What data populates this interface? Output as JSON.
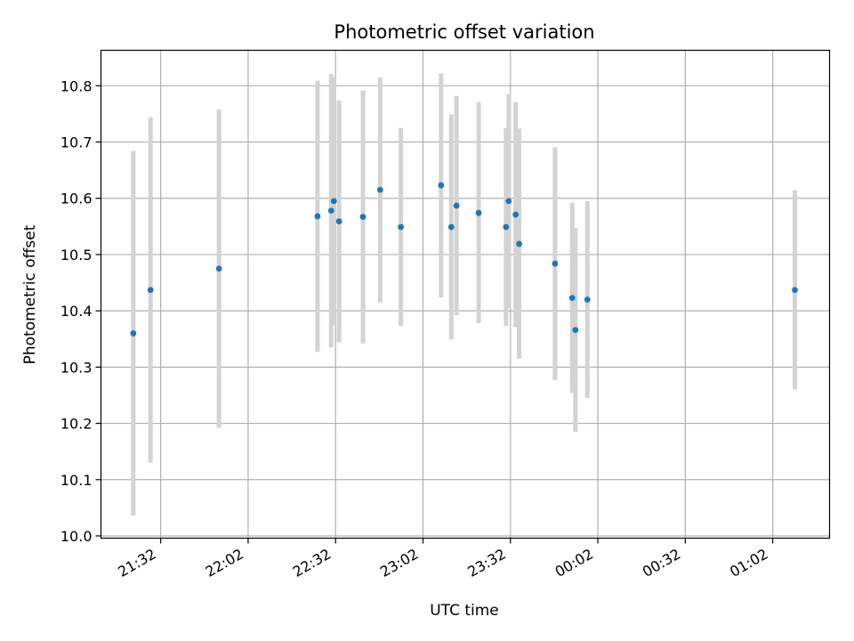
{
  "chart_data": {
    "type": "scatter",
    "title": "Photometric offset variation",
    "xlabel": "UTC time",
    "ylabel": "Photometric offset",
    "x_tick_labels": [
      "21:32",
      "22:02",
      "22:32",
      "23:02",
      "23:32",
      "00:02",
      "00:32",
      "01:02"
    ],
    "x_ticks_minutes": [
      0,
      30,
      60,
      90,
      120,
      150,
      180,
      210
    ],
    "y_ticks": [
      10.0,
      10.1,
      10.2,
      10.3,
      10.4,
      10.5,
      10.6,
      10.7,
      10.8
    ],
    "y_tick_labels": [
      "10.0",
      "10.1",
      "10.2",
      "10.3",
      "10.4",
      "10.5",
      "10.6",
      "10.7",
      "10.8"
    ],
    "xlim_minutes": [
      -20.5,
      229.5
    ],
    "ylim": [
      9.996,
      10.863
    ],
    "grid": true,
    "point_color": "#1f77b4",
    "errorbar_color": "#d3d3d3",
    "note_x": "x values given as minutes after 21:32 UTC",
    "points": [
      {
        "t": -9.4,
        "y": 10.36,
        "lo": 10.036,
        "hi": 10.684
      },
      {
        "t": -3.5,
        "y": 10.437,
        "lo": 10.13,
        "hi": 10.744
      },
      {
        "t": 20.0,
        "y": 10.475,
        "lo": 10.192,
        "hi": 10.758
      },
      {
        "t": 53.8,
        "y": 10.568,
        "lo": 10.327,
        "hi": 10.809
      },
      {
        "t": 58.5,
        "y": 10.578,
        "lo": 10.335,
        "hi": 10.821
      },
      {
        "t": 59.4,
        "y": 10.595,
        "lo": 10.375,
        "hi": 10.815
      },
      {
        "t": 61.2,
        "y": 10.559,
        "lo": 10.344,
        "hi": 10.774
      },
      {
        "t": 69.4,
        "y": 10.567,
        "lo": 10.342,
        "hi": 10.792
      },
      {
        "t": 75.3,
        "y": 10.615,
        "lo": 10.415,
        "hi": 10.815
      },
      {
        "t": 82.4,
        "y": 10.549,
        "lo": 10.373,
        "hi": 10.725
      },
      {
        "t": 96.2,
        "y": 10.623,
        "lo": 10.424,
        "hi": 10.822
      },
      {
        "t": 99.7,
        "y": 10.549,
        "lo": 10.349,
        "hi": 10.749
      },
      {
        "t": 101.5,
        "y": 10.587,
        "lo": 10.392,
        "hi": 10.782
      },
      {
        "t": 109.1,
        "y": 10.574,
        "lo": 10.378,
        "hi": 10.771
      },
      {
        "t": 118.5,
        "y": 10.549,
        "lo": 10.373,
        "hi": 10.725
      },
      {
        "t": 119.4,
        "y": 10.595,
        "lo": 10.405,
        "hi": 10.785
      },
      {
        "t": 121.8,
        "y": 10.571,
        "lo": 10.371,
        "hi": 10.771
      },
      {
        "t": 123.0,
        "y": 10.519,
        "lo": 10.315,
        "hi": 10.724
      },
      {
        "t": 135.3,
        "y": 10.484,
        "lo": 10.277,
        "hi": 10.691
      },
      {
        "t": 141.2,
        "y": 10.423,
        "lo": 10.254,
        "hi": 10.592
      },
      {
        "t": 142.3,
        "y": 10.366,
        "lo": 10.185,
        "hi": 10.547
      },
      {
        "t": 146.4,
        "y": 10.42,
        "lo": 10.245,
        "hi": 10.595
      },
      {
        "t": 217.6,
        "y": 10.437,
        "lo": 10.26,
        "hi": 10.614
      }
    ]
  }
}
